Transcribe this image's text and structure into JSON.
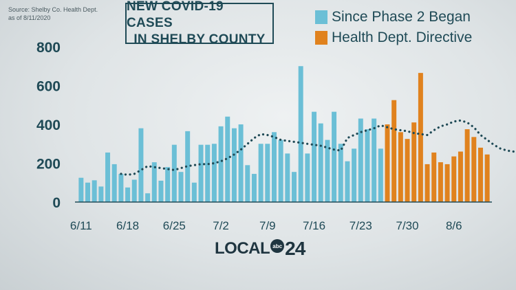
{
  "source": {
    "line1": "Source:  Shelby Co. Health Dept.",
    "line2": "as of 8/11/2020"
  },
  "title": {
    "line1": "NEW COVID-19 CASES",
    "line2": "IN SHELBY COUNTY"
  },
  "legend": {
    "items": [
      {
        "label": "Since Phase 2 Began",
        "color": "#6bbfd6"
      },
      {
        "label": "Health Dept. Directive",
        "color": "#e0821e"
      }
    ]
  },
  "logo": {
    "word": "LOCAL",
    "badge": "abc",
    "number": "24"
  },
  "colors": {
    "phase2": "#6bbfd6",
    "directive": "#e0821e",
    "average": "#1f4a56",
    "axis_text": "#1f4a56"
  },
  "chart_data": {
    "type": "bar",
    "ylim": [
      0,
      800
    ],
    "yticks": [
      "0",
      "200",
      "400",
      "600",
      "800"
    ],
    "grid": false,
    "xtick_labels": [
      {
        "label": "6/11",
        "index": 0
      },
      {
        "label": "6/18",
        "index": 7
      },
      {
        "label": "6/25",
        "index": 14
      },
      {
        "label": "7/2",
        "index": 21
      },
      {
        "label": "7/9",
        "index": 28
      },
      {
        "label": "7/16",
        "index": 35
      },
      {
        "label": "7/23",
        "index": 42
      },
      {
        "label": "7/30",
        "index": 49
      },
      {
        "label": "8/6",
        "index": 56
      }
    ],
    "series": [
      {
        "name": "Since Phase 2 Began",
        "start_index": 0,
        "values": [
          125,
          100,
          112,
          80,
          255,
          195,
          145,
          75,
          115,
          380,
          45,
          205,
          110,
          180,
          295,
          155,
          365,
          100,
          295,
          295,
          300,
          390,
          440,
          380,
          400,
          190,
          145,
          300,
          300,
          360,
          320,
          250,
          155,
          700,
          250,
          465,
          405,
          320,
          465,
          300,
          210,
          275,
          430,
          375,
          430,
          275
        ]
      },
      {
        "name": "Health Dept. Directive",
        "start_index": 46,
        "values": [
          400,
          525,
          360,
          325,
          410,
          665,
          195,
          255,
          205,
          195,
          235,
          260,
          375,
          335,
          280,
          245
        ]
      }
    ],
    "average": {
      "start_index": 6,
      "values": [
        145,
        140,
        145,
        165,
        185,
        180,
        175,
        170,
        165,
        175,
        185,
        190,
        195,
        195,
        200,
        210,
        225,
        245,
        270,
        300,
        330,
        350,
        345,
        335,
        320,
        315,
        310,
        305,
        300,
        295,
        290,
        280,
        270,
        265,
        330,
        345,
        360,
        370,
        380,
        395,
        385,
        375,
        370,
        365,
        355,
        350,
        345,
        370,
        390,
        400,
        415,
        420,
        410,
        385,
        345,
        320,
        295,
        275,
        265,
        260,
        265,
        270,
        275
      ]
    }
  }
}
